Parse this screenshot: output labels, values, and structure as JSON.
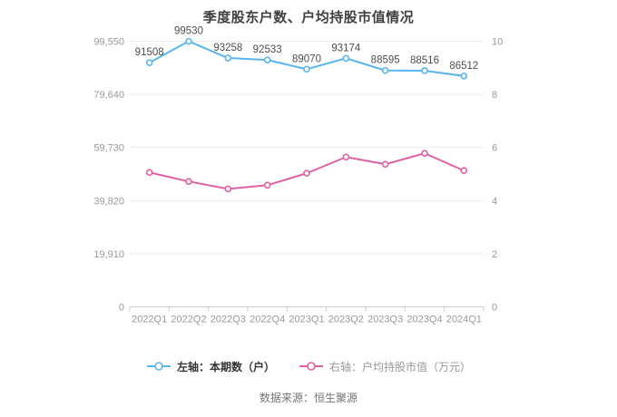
{
  "chart": {
    "title": "季度股东户数、户均持股市值情况",
    "source": "数据来源：恒生聚源"
  },
  "chart_data": {
    "type": "line",
    "title": "季度股东户数、户均持股市值情况",
    "categories": [
      "2022Q1",
      "2022Q2",
      "2022Q3",
      "2022Q4",
      "2023Q1",
      "2023Q2",
      "2023Q3",
      "2023Q4",
      "2024Q1"
    ],
    "series": [
      {
        "name": "左轴：本期数（户）",
        "axis": "left",
        "color": "#58B6F0",
        "values": [
          91508,
          99530,
          93258,
          92533,
          89070,
          93174,
          88595,
          88516,
          86512
        ],
        "data_labels": [
          "91508",
          "99530",
          "93258",
          "92533",
          "89070",
          "93174",
          "88595",
          "88516",
          "86512"
        ],
        "labels_visible": true
      },
      {
        "name": "右轴：户均持股市值（万元）",
        "axis": "right",
        "color": "#E160A3",
        "values": [
          5.06,
          4.72,
          4.44,
          4.58,
          5.03,
          5.64,
          5.37,
          5.78,
          5.13
        ],
        "labels_visible": false
      }
    ],
    "left_axis": {
      "min": 0,
      "max": 99550,
      "ticks": [
        0,
        19910,
        39820,
        59730,
        79640,
        99550
      ],
      "tick_labels": [
        "0",
        "19,910",
        "39,820",
        "59,730",
        "79,640",
        "99,550"
      ]
    },
    "right_axis": {
      "min": 0,
      "max": 10,
      "ticks": [
        0,
        2,
        4,
        6,
        8,
        10
      ],
      "tick_labels": [
        "0",
        "2",
        "4",
        "6",
        "8",
        "10"
      ]
    },
    "grid": true,
    "legend_position": "bottom",
    "colors": {
      "grid_line": "#E8EEF4",
      "axis_line": "#CCCCCC",
      "axis_text": "#999999",
      "data_label_text": "#4D4D4D"
    }
  }
}
